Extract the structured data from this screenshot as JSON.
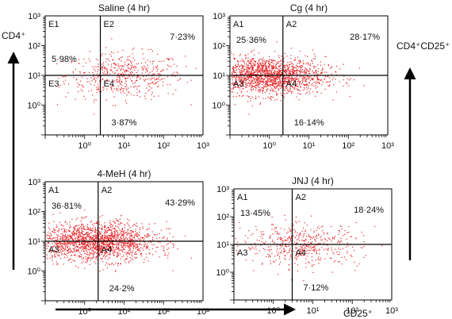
{
  "figure": {
    "left_axis_label": "CD4⁺",
    "right_axis_label": "CD4⁺CD25⁺",
    "bottom_axis_label": "CD25⁺",
    "dot_color": "#e8262a",
    "tick_labels": {
      "x": [
        "10⁰",
        "10¹",
        "10²",
        "10³"
      ],
      "y": [
        "10³",
        "10²",
        "10¹",
        "10⁰"
      ]
    }
  },
  "chart_data": [
    {
      "type": "scatter",
      "title": "Saline (4 hr)",
      "xscale": "log",
      "yscale": "log",
      "xlim": [
        0.1,
        1000
      ],
      "ylim": [
        0.1,
        1000
      ],
      "quadrant_labels": [
        "E1",
        "E2",
        "E3",
        "E4"
      ],
      "percentages": {
        "upper_left": "5·98%",
        "upper_right": "7·23%",
        "lower_right": "3·87%"
      },
      "gate": {
        "x": 2.5,
        "y": 10
      },
      "cloud": {
        "x_center": 10,
        "y_center": 10,
        "density": "sparse"
      }
    },
    {
      "type": "scatter",
      "title": "Cg (4 hr)",
      "xscale": "log",
      "yscale": "log",
      "xlim": [
        0.1,
        1000
      ],
      "ylim": [
        0.1,
        1000
      ],
      "quadrant_labels": [
        "A1",
        "A2",
        "A3",
        "A4"
      ],
      "percentages": {
        "upper_left": "25·36%",
        "upper_right": "28·17%",
        "lower_right": "16·14%"
      },
      "gate": {
        "x": 2.2,
        "y": 10
      },
      "cloud": {
        "x_center": 0.8,
        "y_center": 10,
        "density": "dense"
      }
    },
    {
      "type": "scatter",
      "title": "4-MeH (4 hr)",
      "xscale": "log",
      "yscale": "log",
      "xlim": [
        0.1,
        1000
      ],
      "ylim": [
        0.1,
        1000
      ],
      "quadrant_labels": [
        "A1",
        "A2",
        "A3",
        "A4"
      ],
      "percentages": {
        "upper_left": "36·81%",
        "upper_right": "43·29%",
        "lower_right": "24·2%"
      },
      "gate": {
        "x": 2.2,
        "y": 10
      },
      "cloud": {
        "x_center": 2,
        "y_center": 10,
        "density": "dense"
      }
    },
    {
      "type": "scatter",
      "title": "JNJ (4 hr)",
      "xscale": "log",
      "yscale": "log",
      "xlim": [
        0.1,
        1000
      ],
      "ylim": [
        0.1,
        1000
      ],
      "quadrant_labels": [
        "A1",
        "A2",
        "A3",
        "A4"
      ],
      "percentages": {
        "upper_left": "13·45%",
        "upper_right": "18·24%",
        "lower_right": "7·12%"
      },
      "gate": {
        "x": 3,
        "y": 10
      },
      "cloud": {
        "x_center": 5,
        "y_center": 10,
        "density": "sparse"
      }
    }
  ]
}
